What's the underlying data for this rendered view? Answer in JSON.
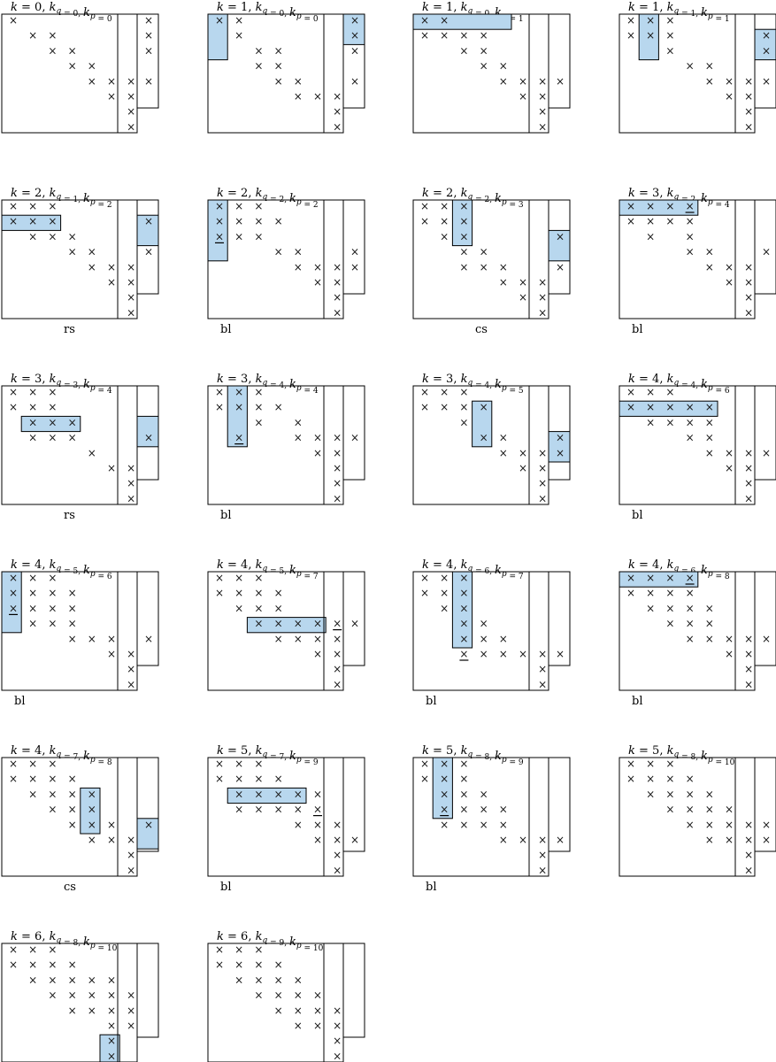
{
  "panels": [
    {
      "k": 0,
      "kq": 0,
      "kp": 0,
      "label": "",
      "rows": [
        "x......",
        ".xx....",
        "..xx...",
        "...xx..",
        "....xxx",
        ".....xx",
        "......x",
        "......x"
      ],
      "highlight": null,
      "side": [
        "x",
        "x",
        "x",
        "",
        "x",
        "",
        "",
        ""
      ],
      "side_highlight": null,
      "underline": []
    },
    {
      "k": 1,
      "kq": 0,
      "kp": 0,
      "label": "",
      "rows": [
        "xx.....",
        ".x.....",
        "..xx...",
        "..xx...",
        "...xx..",
        "....xxx",
        "......x",
        "......x"
      ],
      "highlight": {
        "r0": 0,
        "r1": 3,
        "c0": 0,
        "c1": 1
      },
      "side": [
        "x",
        "x",
        "x",
        "",
        "x",
        "",
        "",
        ""
      ],
      "side_highlight": {
        "r0": 0,
        "r1": 1
      },
      "underline": [
        [
          0,
          7
        ]
      ]
    },
    {
      "k": 1,
      "kq": 0,
      "kp": 1,
      "label": "",
      "rows": [
        "xx.....",
        "xxxx...",
        "..xx...",
        "...xx..",
        "....xxx",
        ".....xx",
        "......x",
        "......x"
      ],
      "highlight": {
        "r0": 0,
        "r1": 1,
        "c0": 0,
        "c1": 5
      },
      "side": [
        "",
        "",
        "",
        "",
        "x",
        "",
        "",
        ""
      ],
      "side_highlight": null,
      "underline": [
        [
          0,
          6
        ]
      ]
    },
    {
      "k": 1,
      "kq": 1,
      "kp": 1,
      "label": "",
      "rows": [
        "xxx....",
        "xxx....",
        "..x....",
        "...xx..",
        "....xxx",
        ".....xx",
        "......x",
        "......x"
      ],
      "highlight": {
        "r0": 0,
        "r1": 3,
        "c0": 1,
        "c1": 2
      },
      "side": [
        "",
        "x",
        "x",
        "",
        "x",
        "",
        "",
        ""
      ],
      "side_highlight": {
        "r0": 1,
        "r1": 2
      },
      "underline": [
        [
          1,
          7
        ]
      ]
    },
    {
      "k": 2,
      "kq": 1,
      "kp": 2,
      "label": "rs",
      "rows": [
        "xxx....",
        "xxx....",
        ".xxx...",
        "...xx..",
        "....xxx",
        ".....xx",
        "......x",
        "......x"
      ],
      "highlight": {
        "r0": 1,
        "r1": 2,
        "c0": 0,
        "c1": 3
      },
      "side": [
        "",
        "x",
        "",
        "x",
        "",
        "",
        "",
        ""
      ],
      "side_highlight": {
        "r0": 1,
        "r1": 2
      },
      "underline": [
        [
          1,
          6
        ]
      ]
    },
    {
      "k": 2,
      "kq": 2,
      "kp": 2,
      "label": "bl",
      "rows": [
        "xxx....",
        "xxxx...",
        "xxx....",
        "...xx..",
        "....xxx",
        ".....xx",
        "......x",
        "......x"
      ],
      "highlight": {
        "r0": 0,
        "r1": 4,
        "c0": 0,
        "c1": 1
      },
      "side": [
        "",
        "",
        "",
        "x",
        "x",
        "",
        "",
        ""
      ],
      "side_highlight": null,
      "underline": [
        [
          2,
          0
        ]
      ]
    },
    {
      "k": 2,
      "kq": 2,
      "kp": 3,
      "label": "cs",
      "rows": [
        "xxx....",
        "xxx....",
        ".xx....",
        "..xx...",
        "..xxx..",
        "....xxx",
        ".....xx",
        "......x"
      ],
      "highlight": {
        "r0": 0,
        "r1": 3,
        "c0": 2,
        "c1": 3
      },
      "side": [
        "",
        "",
        "x",
        "",
        "x",
        "",
        "",
        ""
      ],
      "side_highlight": {
        "r0": 2,
        "r1": 3
      },
      "underline": [
        [
          2,
          7
        ]
      ]
    },
    {
      "k": 3,
      "kq": 2,
      "kp": 4,
      "label": "bl",
      "rows": [
        "xxxx...",
        "xxxx...",
        ".x.x...",
        "...xx..",
        "....xxx",
        ".....xx",
        "......x",
        "......x"
      ],
      "highlight": {
        "r0": 0,
        "r1": 1,
        "c0": 0,
        "c1": 4
      },
      "side": [
        "",
        "",
        "",
        "x",
        "",
        "",
        "",
        ""
      ],
      "side_highlight": null,
      "underline": [
        [
          0,
          3
        ]
      ]
    },
    {
      "k": 3,
      "kq": 3,
      "kp": 4,
      "label": "rs",
      "rows": [
        "xxx....",
        "xxx....",
        ".xxx...",
        ".xxx...",
        "....x..",
        ".....xx",
        "......x",
        "......x"
      ],
      "highlight": {
        "r0": 2,
        "r1": 3,
        "c0": 1,
        "c1": 4
      },
      "side": [
        "",
        "",
        "",
        "x",
        "",
        "",
        "",
        ""
      ],
      "side_highlight": {
        "r0": 2,
        "r1": 3
      },
      "underline": [
        [
          2,
          6
        ]
      ]
    },
    {
      "k": 3,
      "kq": 4,
      "kp": 4,
      "label": "bl",
      "rows": [
        "xxx....",
        "xxxx...",
        "..x.x..",
        ".x..xxx",
        ".....xx",
        "......x",
        "......x",
        "......x"
      ],
      "highlight": {
        "r0": 0,
        "r1": 4,
        "c0": 1,
        "c1": 2
      },
      "side": [
        "",
        "",
        "",
        "x",
        "",
        "",
        "",
        ""
      ],
      "side_highlight": null,
      "underline": [
        [
          3,
          1
        ]
      ]
    },
    {
      "k": 3,
      "kq": 4,
      "kp": 5,
      "label": "",
      "rows": [
        "xxx....",
        "xxxx...",
        "..x....",
        "...xx..",
        "....xxx",
        ".....xx",
        "......x",
        "......x"
      ],
      "highlight": {
        "r0": 1,
        "r1": 4,
        "c0": 3,
        "c1": 4
      },
      "side": [
        "",
        "",
        "",
        "x",
        "x",
        "",
        "",
        ""
      ],
      "side_highlight": {
        "r0": 3,
        "r1": 4
      },
      "underline": [
        [
          3,
          7
        ]
      ]
    },
    {
      "k": 4,
      "kq": 4,
      "kp": 6,
      "label": "bl",
      "rows": [
        "xxx....",
        "xxxxx..",
        ".xxxx..",
        "...xx..",
        "....xxx",
        ".....xx",
        "......x",
        "......x"
      ],
      "highlight": {
        "r0": 1,
        "r1": 2,
        "c0": 0,
        "c1": 5
      },
      "side": [
        "",
        "",
        "",
        "",
        "x",
        "",
        "",
        ""
      ],
      "side_highlight": null,
      "underline": []
    },
    {
      "k": 4,
      "kq": 5,
      "kp": 6,
      "label": "bl",
      "rows": [
        "xxx....",
        "xxxx...",
        "xxxx...",
        ".xxx...",
        "...xxx.",
        ".....xx",
        "......x",
        "......x"
      ],
      "highlight": {
        "r0": 0,
        "r1": 4,
        "c0": 0,
        "c1": 1
      },
      "side": [
        "",
        "",
        "",
        "",
        "x",
        "",
        "",
        ""
      ],
      "side_highlight": null,
      "underline": [
        [
          2,
          0
        ]
      ]
    },
    {
      "k": 4,
      "kq": 5,
      "kp": 7,
      "label": "",
      "rows": [
        "xxx....",
        "xxxx...",
        ".xxx...",
        "..xxxxx",
        "...xxxx",
        ".....xx",
        "......x",
        "......x"
      ],
      "highlight": {
        "r0": 3,
        "r1": 4,
        "c0": 2,
        "c1": 6
      },
      "side": [
        "",
        "",
        "",
        "x",
        "",
        "",
        "",
        ""
      ],
      "side_highlight": null,
      "underline": [
        [
          3,
          6
        ]
      ]
    },
    {
      "k": 4,
      "kq": 6,
      "kp": 7,
      "label": "bl",
      "rows": [
        "xxx....",
        "xxx....",
        ".xx....",
        "..xx...",
        "..xxx..",
        "..xxxxx",
        "......x",
        "......x"
      ],
      "highlight": {
        "r0": 0,
        "r1": 5,
        "c0": 2,
        "c1": 3
      },
      "side": [
        "",
        "",
        "",
        "",
        "",
        "x",
        "",
        ""
      ],
      "side_highlight": null,
      "underline": [
        [
          5,
          2
        ]
      ]
    },
    {
      "k": 4,
      "kq": 6,
      "kp": 8,
      "label": "bl",
      "rows": [
        "xxxx...",
        "xxxx...",
        ".xxxx..",
        "..xxx..",
        "...xxxx",
        ".....xx",
        "......x",
        "......x"
      ],
      "highlight": {
        "r0": 0,
        "r1": 1,
        "c0": 0,
        "c1": 4
      },
      "side": [
        "",
        "",
        "",
        "",
        "x",
        "",
        "",
        ""
      ],
      "side_highlight": null,
      "underline": [
        [
          0,
          3
        ]
      ]
    },
    {
      "k": 4,
      "kq": 7,
      "kp": 8,
      "label": "cs",
      "rows": [
        "xxx....",
        "xxxx...",
        ".xxxx..",
        "..xxx..",
        "...xxx.",
        "....xxx",
        "......x",
        "......x"
      ],
      "highlight": {
        "r0": 2,
        "r1": 5,
        "c0": 4,
        "c1": 5
      },
      "side": [
        "",
        "",
        "",
        "",
        "x",
        "",
        "",
        ""
      ],
      "side_highlight": {
        "r0": 4,
        "r1": 5
      },
      "underline": [
        [
          4,
          7
        ]
      ]
    },
    {
      "k": 5,
      "kq": 7,
      "kp": 9,
      "label": "bl",
      "rows": [
        "xxx....",
        "xxxx...",
        ".xxxxx.",
        ".xxxxx.",
        "....xxx",
        ".....xx",
        "......x",
        "......x"
      ],
      "highlight": {
        "r0": 2,
        "r1": 3,
        "c0": 1,
        "c1": 5
      },
      "side": [
        "",
        "",
        "",
        "",
        "",
        "x",
        "",
        ""
      ],
      "side_highlight": null,
      "underline": [
        [
          3,
          5
        ]
      ]
    },
    {
      "k": 5,
      "kq": 8,
      "kp": 9,
      "label": "bl",
      "rows": [
        "xxx....",
        "xxx....",
        ".xxx...",
        ".xxxx..",
        ".xxxx..",
        "....xxx",
        "......x",
        "......x"
      ],
      "highlight": {
        "r0": 0,
        "r1": 4,
        "c0": 1,
        "c1": 2
      },
      "side": [
        "",
        "",
        "",
        "",
        "",
        "x",
        "",
        ""
      ],
      "side_highlight": null,
      "underline": [
        [
          3,
          1
        ]
      ]
    },
    {
      "k": 5,
      "kq": 8,
      "kp": 10,
      "label": "",
      "rows": [
        "xxx....",
        "xxxx...",
        ".xxxx..",
        "..xxxx.",
        "...xxxx",
        "....xxx",
        "......x",
        "......x"
      ],
      "highlight": null,
      "side": [
        "",
        "",
        "",
        "",
        "x",
        "x",
        "",
        ""
      ],
      "side_highlight": null,
      "underline": []
    },
    {
      "k": 6,
      "kq": 8,
      "kp": 10,
      "label": "",
      "rows": [
        "xxx....",
        "xxxx...",
        ".xxxxx.",
        "..xxxxx",
        "...xxxx",
        ".....xx",
        ".....x.",
        ".....x."
      ],
      "highlight": {
        "r0": 6,
        "r1": 8,
        "c0": 5,
        "c1": 6
      },
      "side": [
        "",
        "",
        "",
        "",
        "",
        "",
        "",
        ""
      ],
      "side_highlight": null,
      "underline": [
        [
          7,
          5
        ]
      ]
    },
    {
      "k": 6,
      "kq": 9,
      "kp": 10,
      "label": "",
      "rows": [
        "xxx....",
        "xxxx...",
        ".xxxx..",
        "..xxxx.",
        "...xxxx",
        "....xxx",
        "......x",
        "......x"
      ],
      "highlight": null,
      "side": [
        "",
        "",
        "",
        "",
        "",
        "",
        "",
        ""
      ],
      "side_highlight": null,
      "underline": []
    }
  ]
}
